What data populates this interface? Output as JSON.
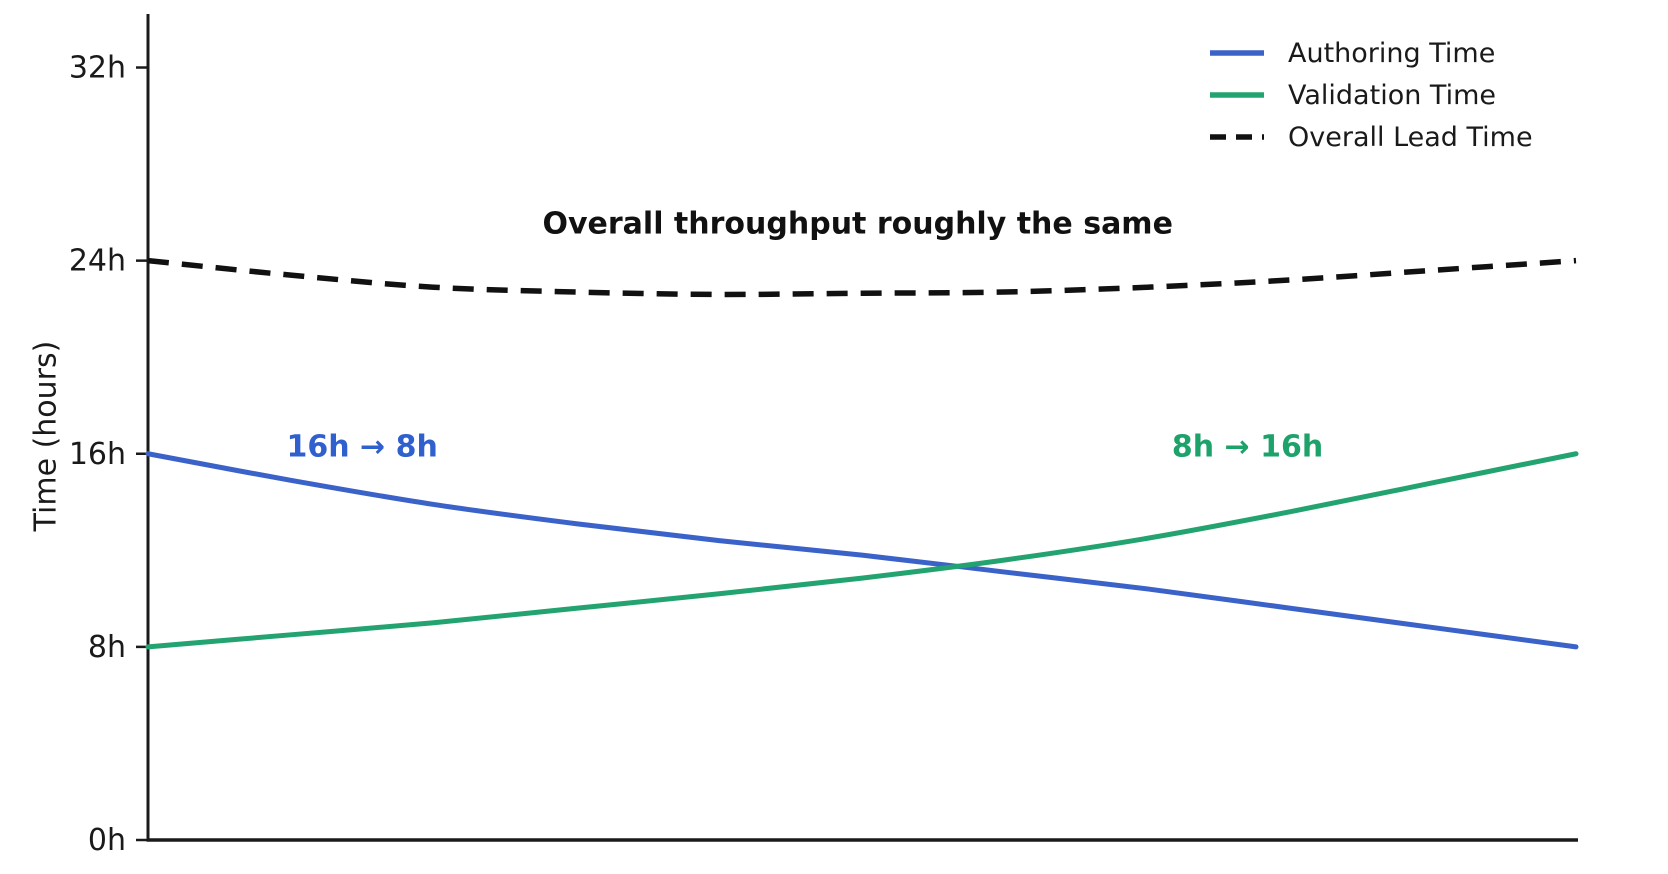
{
  "chart_data": {
    "type": "line",
    "title": "",
    "xlabel": "",
    "ylabel": "Time (hours)",
    "ylim": [
      0,
      34.2
    ],
    "grid": false,
    "legend_position": "upper right",
    "yticks": [
      {
        "value": 0,
        "label": "0h"
      },
      {
        "value": 8,
        "label": "8h"
      },
      {
        "value": 16,
        "label": "16h"
      },
      {
        "value": 24,
        "label": "24h"
      },
      {
        "value": 32,
        "label": "32h"
      }
    ],
    "x": [
      0,
      0.1,
      0.2,
      0.3,
      0.4,
      0.5,
      0.6,
      0.7,
      0.8,
      0.9,
      1
    ],
    "series": [
      {
        "name": "Authoring Time",
        "style": "solid",
        "color": "#3a62c9",
        "values": [
          16,
          14.9,
          13.9,
          13.1,
          12.4,
          11.8,
          11.1,
          10.4,
          9.6,
          8.8,
          8
        ]
      },
      {
        "name": "Validation Time",
        "style": "solid",
        "color": "#23a36f",
        "values": [
          8,
          8.5,
          9.0,
          9.6,
          10.2,
          10.85,
          11.6,
          12.5,
          13.6,
          14.8,
          16
        ]
      },
      {
        "name": "Overall Lead Time",
        "style": "dashed",
        "color": "#111111",
        "values": [
          24,
          23.4,
          22.9,
          22.7,
          22.6,
          22.65,
          22.7,
          22.9,
          23.2,
          23.6,
          24
        ]
      }
    ],
    "annotations": [
      {
        "text": "16h → 8h",
        "color": "#3060cd",
        "x": 0.15,
        "y": 16.3
      },
      {
        "text": "8h → 16h",
        "color": "#1da26a",
        "x": 0.77,
        "y": 16.3
      },
      {
        "text": "Overall throughput roughly the same",
        "color": "#111111",
        "x": 0.497,
        "y": 25.5
      }
    ],
    "axis_color": "#1a1a1a",
    "tick_label_color": "#1a1a1a"
  }
}
